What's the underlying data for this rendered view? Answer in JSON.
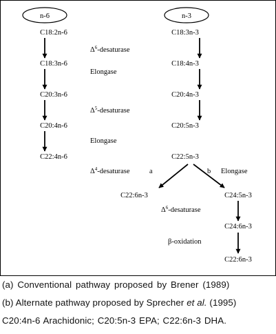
{
  "diagram": {
    "left_column": {
      "header": "n-6",
      "nodes": [
        "C18:2n-6",
        "C18:3n-6",
        "C20:3n-6",
        "C20:4n-6",
        "C22:4n-6"
      ]
    },
    "right_column": {
      "header": "n-3",
      "nodes": [
        "C18:3n-3",
        "C18:4n-3",
        "C20:4n-3",
        "C20:5n-3",
        "C22:5n-3"
      ]
    },
    "steps": {
      "step1": {
        "delta": "Δ",
        "sup": "6",
        "name": "-desaturase"
      },
      "step2": "Elongase",
      "step3": {
        "delta": "Δ",
        "sup": "5",
        "name": "-desaturase"
      },
      "step4": "Elongase",
      "step5": {
        "delta": "Δ",
        "sup": "4",
        "name": "-desaturase"
      }
    },
    "branch": {
      "label_a": "a",
      "label_b": "b",
      "elongase": "Elongase",
      "a_product": "C22:6n-3",
      "b_nodes": [
        "C24:5n-3",
        "C24:6n-3",
        "C22:6n-3"
      ],
      "desaturase": {
        "delta": "Δ",
        "sup": "6",
        "name": "-desaturase"
      },
      "oxidation": "β-oxidation"
    }
  },
  "captions": {
    "a": "(a) Conventional pathway proposed by Brener (1989)",
    "b_prefix": "(b) Alternate pathway proposed by Sprecher ",
    "b_italic": "et al.",
    "b_suffix": " (1995)",
    "c": "C20:4n-6 Arachidonic; C20:5n-3 EPA; C22:6n-3 DHA."
  }
}
